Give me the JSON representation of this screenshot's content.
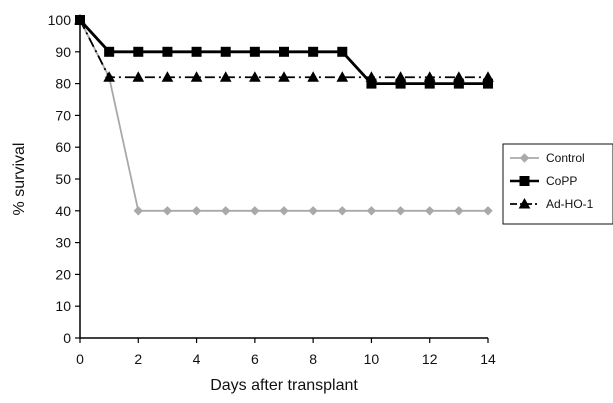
{
  "chart_data": {
    "type": "line",
    "title": "",
    "xlabel": "Days after transplant",
    "ylabel": "% survival",
    "xlim": [
      0,
      14
    ],
    "ylim": [
      0,
      100
    ],
    "xticks": [
      0,
      2,
      4,
      6,
      8,
      10,
      12,
      14
    ],
    "yticks": [
      0,
      10,
      20,
      30,
      40,
      50,
      60,
      70,
      80,
      90,
      100
    ],
    "grid": false,
    "legend": {
      "position": "right",
      "entries": [
        "Control",
        "CoPP",
        "Ad-HO-1"
      ]
    },
    "series": [
      {
        "name": "Control",
        "color": "#a9a9a9",
        "marker": "diamond",
        "line_style": "solid",
        "x": [
          0,
          1,
          2,
          3,
          4,
          5,
          6,
          7,
          8,
          9,
          10,
          11,
          12,
          13,
          14
        ],
        "values": [
          100,
          82,
          40,
          40,
          40,
          40,
          40,
          40,
          40,
          40,
          40,
          40,
          40,
          40,
          40
        ]
      },
      {
        "name": "CoPP",
        "color": "#000000",
        "marker": "square",
        "line_style": "solid",
        "x": [
          0,
          1,
          2,
          3,
          4,
          5,
          6,
          7,
          8,
          9,
          10,
          11,
          12,
          13,
          14
        ],
        "values": [
          100,
          90,
          90,
          90,
          90,
          90,
          90,
          90,
          90,
          90,
          80,
          80,
          80,
          80,
          80
        ]
      },
      {
        "name": "Ad-HO-1",
        "color": "#000000",
        "marker": "triangle",
        "line_style": "dash-dot",
        "x": [
          0,
          1,
          2,
          3,
          4,
          5,
          6,
          7,
          8,
          9,
          10,
          11,
          12,
          13,
          14
        ],
        "values": [
          100,
          82,
          82,
          82,
          82,
          82,
          82,
          82,
          82,
          82,
          82,
          82,
          82,
          82,
          82
        ]
      }
    ]
  }
}
